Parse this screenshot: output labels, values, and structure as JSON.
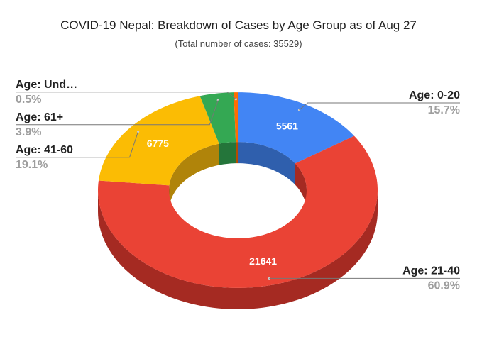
{
  "chart_data": {
    "type": "pie",
    "style": "3d-donut",
    "title": "COVID-19 Nepal: Breakdown of Cases by Age Group as of Aug 27",
    "subtitle": "(Total number of cases: 35529)",
    "slices": [
      {
        "label": "Age: 0-20",
        "value": 5561,
        "value_label": "5561",
        "percent_label": "15.7%",
        "color": "#4285f4",
        "side_color": "#2f5fad"
      },
      {
        "label": "Age: 21-40",
        "value": 21641,
        "value_label": "21641",
        "percent_label": "60.9%",
        "color": "#ea4335",
        "side_color": "#a52a22"
      },
      {
        "label": "Age: 41-60",
        "value": 6775,
        "value_label": "6775",
        "percent_label": "19.1%",
        "color": "#fbbc04",
        "side_color": "#b0840a"
      },
      {
        "label": "Age: 61+",
        "value": 1386,
        "value_label": "",
        "percent_label": "3.9%",
        "color": "#34a853",
        "side_color": "#24753a"
      },
      {
        "label": "Age: Und…",
        "value": 166,
        "value_label": "",
        "percent_label": "0.5%",
        "color": "#ff6d01",
        "side_color": "#b34d01"
      }
    ],
    "legend": "labels-with-leader-lines"
  }
}
